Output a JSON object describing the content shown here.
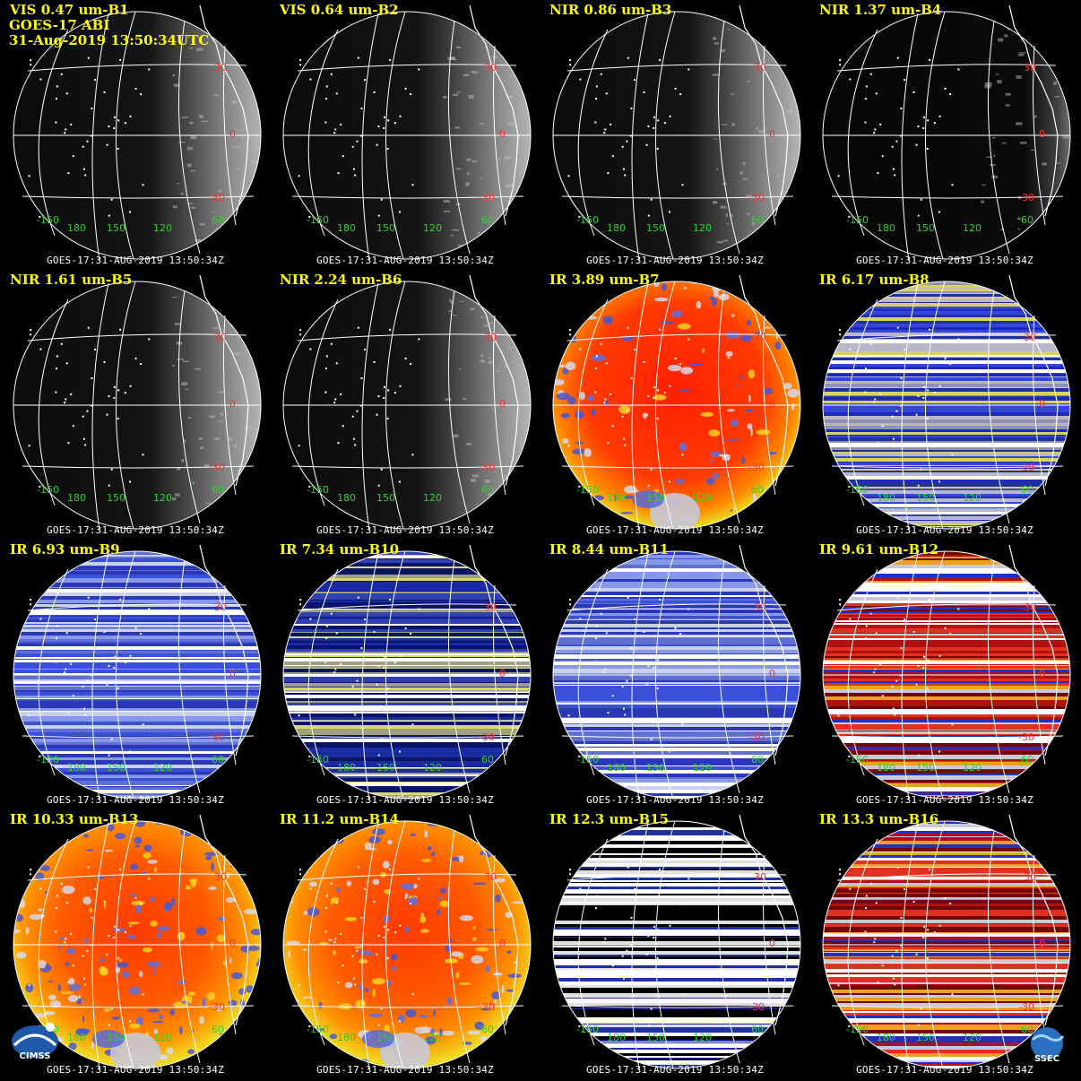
{
  "header": {
    "line2": "GOES-17 ABI",
    "line3": "31-Aug-2019 13:50:34UTC"
  },
  "footer_text": "GOES-17:31-AUG-2019 13:50:34Z",
  "grid_labels": {
    "lat_n30": "30",
    "lat_0": "0",
    "lat_s30": "-30",
    "lon_m150": "-150",
    "lon_180": "180",
    "lon_150": "150",
    "lon_120": "120",
    "lat_60": "60"
  },
  "logos": {
    "left": "CIMSS",
    "right": "SSEC"
  },
  "colors": {
    "title": "#ffff00",
    "grid": "#ffffff",
    "lat_label": "#ff3030",
    "lon_label": "#30d030",
    "border": "#ffffff"
  },
  "panels": [
    {
      "title": "VIS 0.47 um-B1",
      "style": "vis"
    },
    {
      "title": "VIS 0.64 um-B2",
      "style": "vis"
    },
    {
      "title": "NIR 0.86 um-B3",
      "style": "vis"
    },
    {
      "title": "NIR 1.37 um-B4",
      "style": "dark"
    },
    {
      "title": "NIR 1.61 um-B5",
      "style": "vis"
    },
    {
      "title": "NIR 2.24 um-B6",
      "style": "vis"
    },
    {
      "title": "IR 3.89 um-B7",
      "style": "ir-red"
    },
    {
      "title": "IR 6.17 um-B8",
      "style": "stripe-blue"
    },
    {
      "title": "IR 6.93 um-B9",
      "style": "stripe-lightblue"
    },
    {
      "title": "IR 7.34 um-B10",
      "style": "stripe-navy"
    },
    {
      "title": "IR 8.44 um-B11",
      "style": "stripe-lightblue"
    },
    {
      "title": "IR 9.61 um-B12",
      "style": "stripe-red"
    },
    {
      "title": "IR 10.33 um-B13",
      "style": "ir-orange"
    },
    {
      "title": "IR 11.2 um-B14",
      "style": "ir-orange"
    },
    {
      "title": "IR 12.3 um-B15",
      "style": "stripe-bw"
    },
    {
      "title": "IR 13.3 um-B16",
      "style": "stripe-red"
    }
  ]
}
